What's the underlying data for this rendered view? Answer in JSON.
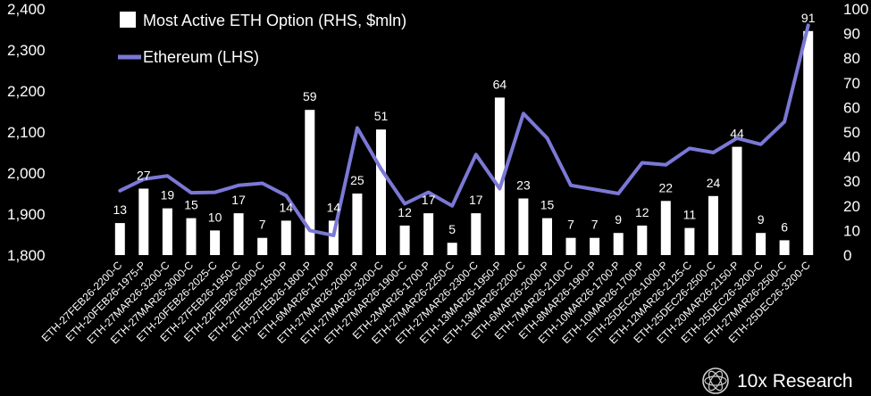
{
  "chart_data": {
    "type": "bar",
    "legend": {
      "bar_label": "Most Active ETH Option (RHS, $mln)",
      "line_label": "Ethereum (LHS)",
      "placement": "top-left"
    },
    "brand": "10x Research",
    "colors": {
      "bar": "#ffffff",
      "line": "#7b78d6",
      "background": "#000000",
      "text": "#ffffff"
    },
    "left_axis": {
      "ylim": [
        1800,
        2400
      ],
      "ticks": [
        "1,800",
        "1,900",
        "2,000",
        "2,100",
        "2,200",
        "2,300",
        "2,400"
      ]
    },
    "right_axis": {
      "ylim": [
        0,
        100
      ],
      "ticks": [
        "0",
        "10",
        "20",
        "30",
        "40",
        "50",
        "60",
        "70",
        "80",
        "90",
        "100"
      ]
    },
    "categories": [
      "ETH-27FEB26-2200-C",
      "ETH-20FEB26-1975-P",
      "ETH-27MAR26-3200-C",
      "ETH-27MAR26-3000-C",
      "ETH-20FEB26-2025-C",
      "ETH-27FEB26-1950-C",
      "ETH-22FEB26-2000-C",
      "ETH-27FEB26-1500-P",
      "ETH-27FEB26-1800-P",
      "ETH-6MAR26-1700-P",
      "ETH-27MAR26-2000-P",
      "ETH-27MAR26-3200-C",
      "ETH-27MAR26-1900-C",
      "ETH-2MAR26-1700-P",
      "ETH-27MAR26-2250-C",
      "ETH-27MAR26-2300-C",
      "ETH-13MAR26-1950-P",
      "ETH-13MAR26-2200-C",
      "ETH-6MAR26-2000-P",
      "ETH-7MAR26-2100-C",
      "ETH-8MAR26-1900-P",
      "ETH-10MAR26-1700-P",
      "ETH-10MAR26-1700-P",
      "ETH-25DEC26-1000-P",
      "ETH-12MAR26-2125-C",
      "ETH-25DEC26-2500-C",
      "ETH-20MAR26-2150-P",
      "ETH-25DEC26-3200-C",
      "ETH-27MAR26-2500-C",
      "ETH-25DEC26-3200-C"
    ],
    "series": [
      {
        "name": "Most Active ETH Option (RHS, $mln)",
        "type": "bar",
        "axis": "right",
        "values": [
          13,
          27,
          19,
          15,
          10,
          17,
          7,
          14,
          59,
          14,
          25,
          51,
          12,
          17,
          5,
          17,
          64,
          23,
          15,
          7,
          7,
          9,
          12,
          22,
          11,
          24,
          44,
          9,
          6,
          91
        ],
        "labels": [
          "13",
          "27",
          "19",
          "15",
          "10",
          "17",
          "7",
          "14",
          "59",
          "14",
          "25",
          "51",
          "12",
          "17",
          "5",
          "17",
          "64",
          "23",
          "15",
          "7",
          "7",
          "9",
          "12",
          "22",
          "11",
          "24",
          "44",
          "9",
          "6",
          "91"
        ]
      },
      {
        "name": "Ethereum (LHS)",
        "type": "line",
        "axis": "left",
        "values": [
          1957,
          1985,
          1993,
          1952,
          1953,
          1970,
          1975,
          1945,
          1860,
          1848,
          2110,
          2010,
          1925,
          1953,
          1920,
          2045,
          1962,
          2145,
          2085,
          1970,
          1960,
          1950,
          2025,
          2020,
          2060,
          2050,
          2085,
          2070,
          2125,
          2360
        ]
      }
    ]
  }
}
